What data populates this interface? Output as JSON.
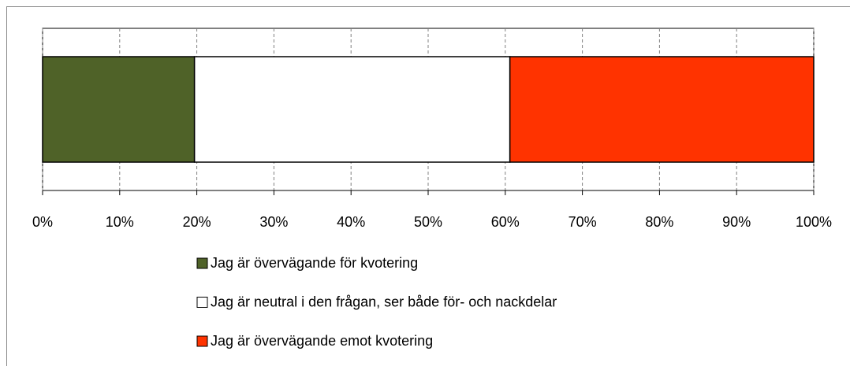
{
  "chart_data": {
    "type": "stacked_barh",
    "series": [
      {
        "name": "Jag är övervägande för kvotering",
        "color": "#4f6228",
        "values": [
          19.7
        ]
      },
      {
        "name": "Jag är neutral i den frågan, ser både för- och nackdelar",
        "color": "#ffffff",
        "values": [
          40.9
        ]
      },
      {
        "name": "Jag är övervägande emot kvotering",
        "color": "#ff3300",
        "values": [
          39.4
        ]
      }
    ],
    "xlim": [
      0,
      100
    ],
    "xticks": [
      {
        "value": 0,
        "label": "0%"
      },
      {
        "value": 10,
        "label": "10%"
      },
      {
        "value": 20,
        "label": "20%"
      },
      {
        "value": 30,
        "label": "30%"
      },
      {
        "value": 40,
        "label": "40%"
      },
      {
        "value": 50,
        "label": "50%"
      },
      {
        "value": 60,
        "label": "60%"
      },
      {
        "value": 70,
        "label": "70%"
      },
      {
        "value": 80,
        "label": "80%"
      },
      {
        "value": 90,
        "label": "90%"
      },
      {
        "value": 100,
        "label": "100%"
      }
    ],
    "grid": true,
    "legend": "bottom"
  }
}
